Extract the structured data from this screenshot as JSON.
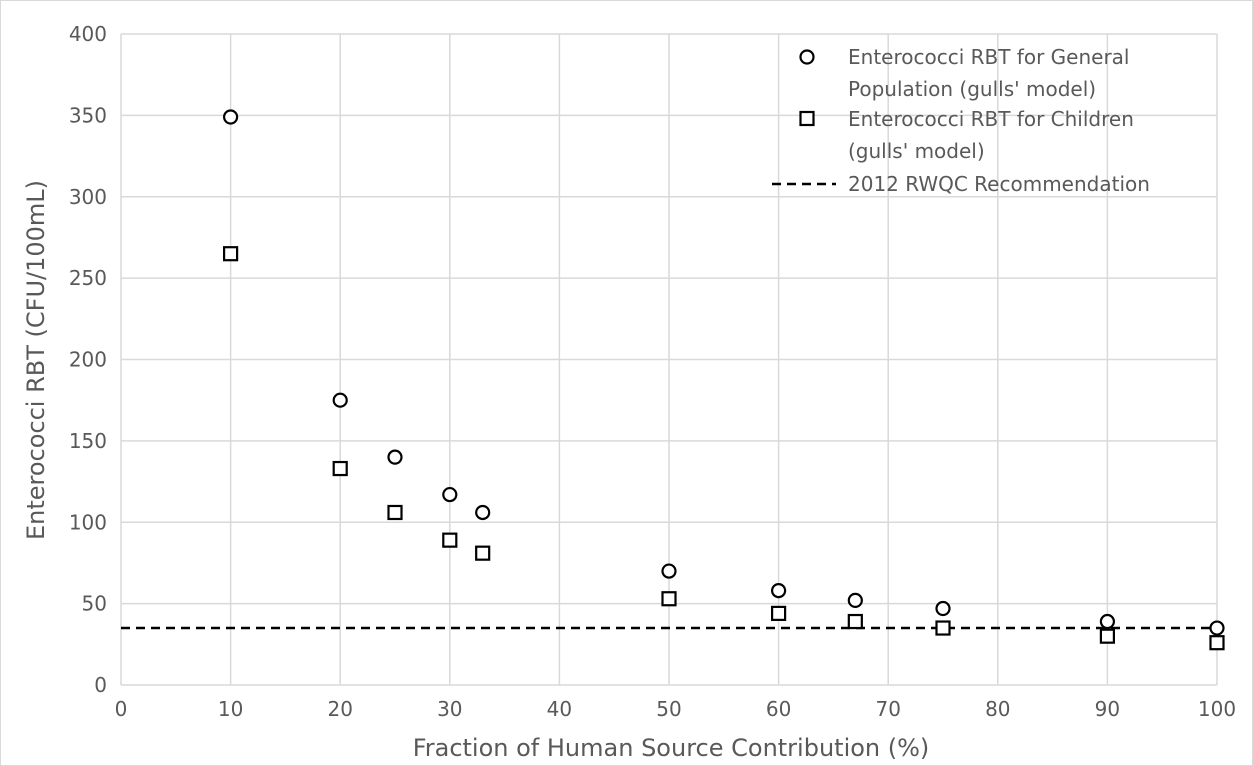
{
  "chart_data": {
    "type": "scatter",
    "title": "",
    "xlabel": "Fraction of Human Source Contribution (%)",
    "ylabel": "Enterococci RBT (CFU/100mL)",
    "xlim": [
      0,
      100
    ],
    "ylim": [
      0,
      400
    ],
    "xticks": [
      0,
      10,
      20,
      30,
      40,
      50,
      60,
      70,
      80,
      90,
      100
    ],
    "yticks": [
      0,
      50,
      100,
      150,
      200,
      250,
      300,
      350,
      400
    ],
    "grid": true,
    "legend_position": "top-right",
    "series": [
      {
        "name": "Enterococci RBT for General Population (gulls' model)",
        "legend_lines": [
          "Enterococci RBT for General",
          "Population (gulls' model)"
        ],
        "marker": "circle",
        "x": [
          10,
          20,
          25,
          30,
          33,
          50,
          60,
          67,
          75,
          90,
          100
        ],
        "y": [
          349,
          175,
          140,
          117,
          106,
          70,
          58,
          52,
          47,
          39,
          35
        ]
      },
      {
        "name": "Enterococci RBT for Children (gulls' model)",
        "legend_lines": [
          "Enterococci RBT for Children",
          "(gulls' model)"
        ],
        "marker": "square",
        "x": [
          10,
          20,
          25,
          30,
          33,
          50,
          60,
          67,
          75,
          90,
          100
        ],
        "y": [
          265,
          133,
          106,
          89,
          81,
          53,
          44,
          39,
          35,
          30,
          26
        ]
      }
    ],
    "reference_line": {
      "name": "2012 RWQC Recommendation",
      "legend_lines": [
        "2012 RWQC Recommendation"
      ],
      "y": 35,
      "style": "dashed"
    }
  }
}
